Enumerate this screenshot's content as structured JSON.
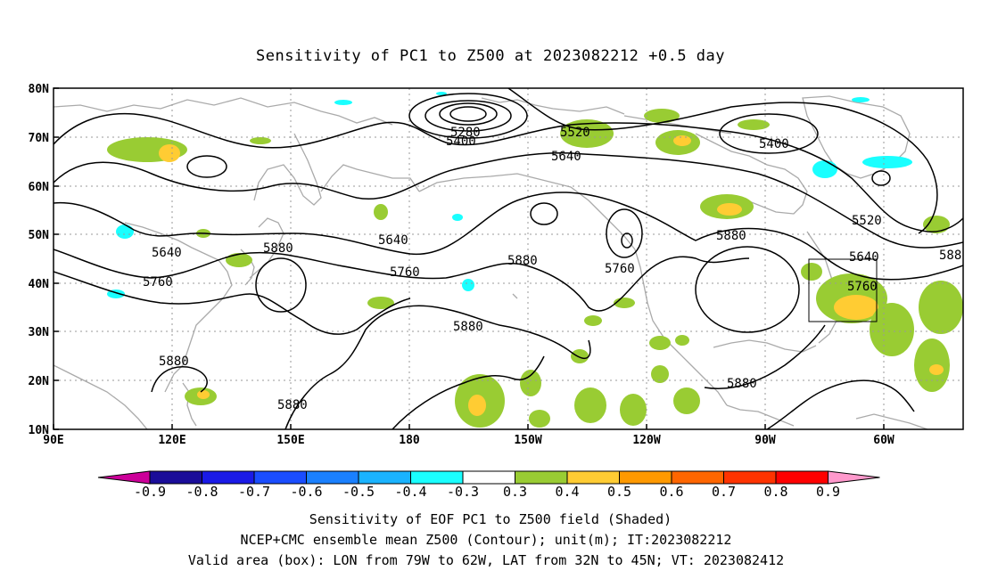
{
  "title": "Sensitivity of PC1 to Z500 at 2023082212 +0.5 day",
  "lat_labels": [
    "80N",
    "70N",
    "60N",
    "50N",
    "40N",
    "30N",
    "20N",
    "10N"
  ],
  "lon_labels": [
    "90E",
    "120E",
    "150E",
    "180",
    "150W",
    "120W",
    "90W",
    "60W"
  ],
  "contour_labels": [
    {
      "text": "5280"
    },
    {
      "text": "5400"
    },
    {
      "text": "5520"
    },
    {
      "text": "5640"
    },
    {
      "text": "5400"
    },
    {
      "text": "5520"
    },
    {
      "text": "5640"
    },
    {
      "text": "5760"
    },
    {
      "text": "588"
    },
    {
      "text": "5880"
    },
    {
      "text": "5760"
    },
    {
      "text": "5880"
    },
    {
      "text": "5640"
    },
    {
      "text": "5760"
    },
    {
      "text": "5880"
    },
    {
      "text": "5640"
    },
    {
      "text": "5760"
    },
    {
      "text": "5880"
    },
    {
      "text": "5880"
    },
    {
      "text": "5880"
    },
    {
      "text": "5880"
    }
  ],
  "colorbar": {
    "labels": [
      "-0.9",
      "-0.8",
      "-0.7",
      "-0.6",
      "-0.5",
      "-0.4",
      "-0.3",
      "0.3",
      "0.4",
      "0.5",
      "0.6",
      "0.7",
      "0.8",
      "0.9"
    ],
    "colors": [
      "#1a0d99",
      "#1a1ae6",
      "#1a4dff",
      "#1a80ff",
      "#1ab3ff",
      "#1affff",
      "#ffffff",
      "#99cc33",
      "#ffcc33",
      "#ff9900",
      "#ff6600",
      "#ff3300",
      "#ff0000"
    ],
    "low_end_color": "#cc0099",
    "high_end_color": "#ff99cc"
  },
  "caption": [
    "Sensitivity of EOF PC1 to Z500 field (Shaded)",
    "NCEP+CMC ensemble mean Z500 (Contour); unit(m); IT:2023082212",
    "Valid area (box): LON from 79W to 62W, LAT from 32N to 45N; VT: 2023082412"
  ],
  "valid_box": {
    "lon_min": -79,
    "lon_max": -62,
    "lat_min": 32,
    "lat_max": 45
  },
  "colors": {
    "coast": "#aaaaaa",
    "contour": "#000000",
    "grid": "#999999",
    "positive": "#99cc33",
    "positive_high": "#ffcc33",
    "negative": "#1affff"
  }
}
